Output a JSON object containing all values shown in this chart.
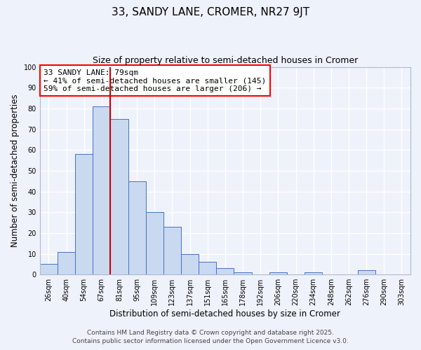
{
  "title": "33, SANDY LANE, CROMER, NR27 9JT",
  "subtitle": "Size of property relative to semi-detached houses in Cromer",
  "xlabel": "Distribution of semi-detached houses by size in Cromer",
  "ylabel": "Number of semi-detached properties",
  "categories": [
    "26sqm",
    "40sqm",
    "54sqm",
    "67sqm",
    "81sqm",
    "95sqm",
    "109sqm",
    "123sqm",
    "137sqm",
    "151sqm",
    "165sqm",
    "178sqm",
    "192sqm",
    "206sqm",
    "220sqm",
    "234sqm",
    "248sqm",
    "262sqm",
    "276sqm",
    "290sqm",
    "303sqm"
  ],
  "values": [
    5,
    11,
    58,
    81,
    75,
    45,
    30,
    23,
    10,
    6,
    3,
    1,
    0,
    1,
    0,
    1,
    0,
    0,
    2,
    0,
    0
  ],
  "bar_color": "#c9d9f0",
  "bar_edge_color": "#4472c4",
  "vline_x": 3.5,
  "vline_color": "#cc0000",
  "annotation_box_text": "33 SANDY LANE: 79sqm\n← 41% of semi-detached houses are smaller (145)\n59% of semi-detached houses are larger (206) →",
  "ylim": [
    0,
    100
  ],
  "yticks": [
    0,
    10,
    20,
    30,
    40,
    50,
    60,
    70,
    80,
    90,
    100
  ],
  "background_color": "#eef2fb",
  "grid_color": "#ffffff",
  "footer_line1": "Contains HM Land Registry data © Crown copyright and database right 2025.",
  "footer_line2": "Contains public sector information licensed under the Open Government Licence v3.0.",
  "title_fontsize": 11,
  "subtitle_fontsize": 9,
  "axis_label_fontsize": 8.5,
  "tick_fontsize": 7,
  "annotation_fontsize": 8,
  "footer_fontsize": 6.5
}
